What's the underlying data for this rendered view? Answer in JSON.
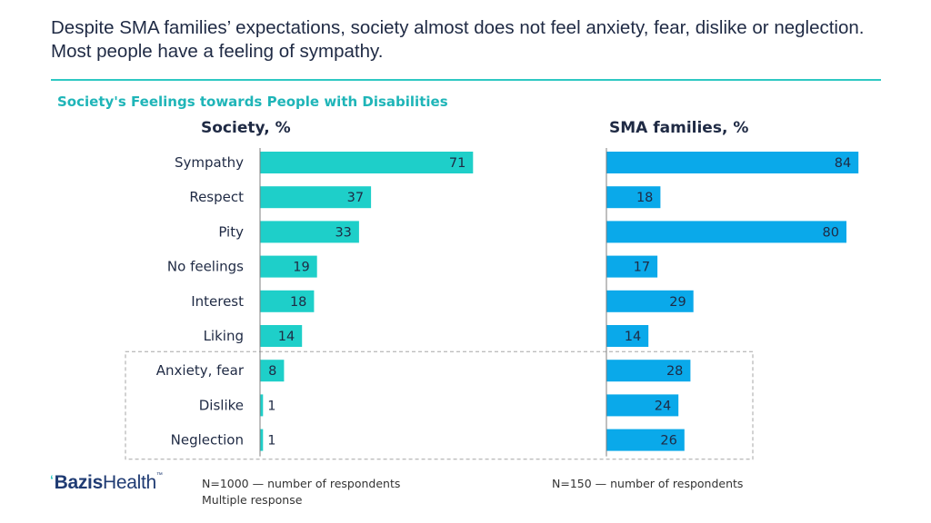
{
  "headline": "Despite SMA families’ expectations, society almost does not feel anxiety, fear, dislike or neglection. Most people have a feeling of sympathy.",
  "subtitle": "Society's Feelings towards People with Disabilities",
  "colors": {
    "society": "#1ecfc9",
    "sma": "#0aa9ea",
    "rule": "#2ec8c3",
    "text": "#1f2a44"
  },
  "chart_data": {
    "type": "bar",
    "orientation": "horizontal",
    "categories": [
      "Sympathy",
      "Respect",
      "Pity",
      "No feelings",
      "Interest",
      "Liking",
      "Anxiety, fear",
      "Dislike",
      "Neglection"
    ],
    "series": [
      {
        "name": "Society, %",
        "values": [
          71,
          37,
          33,
          19,
          18,
          14,
          8,
          1,
          1
        ]
      },
      {
        "name": "SMA families, %",
        "values": [
          84,
          18,
          80,
          17,
          29,
          14,
          28,
          24,
          26
        ]
      }
    ],
    "highlighted_categories": [
      "Anxiety, fear",
      "Dislike",
      "Neglection"
    ]
  },
  "logo": {
    "brand_bold": "Bazis",
    "brand_rest": "Health",
    "trademark": "™"
  },
  "notes": {
    "society_n": "N=1000 — number of respondents",
    "society_multi": "Multiple response",
    "sma_n": "N=150 — number of respondents"
  }
}
